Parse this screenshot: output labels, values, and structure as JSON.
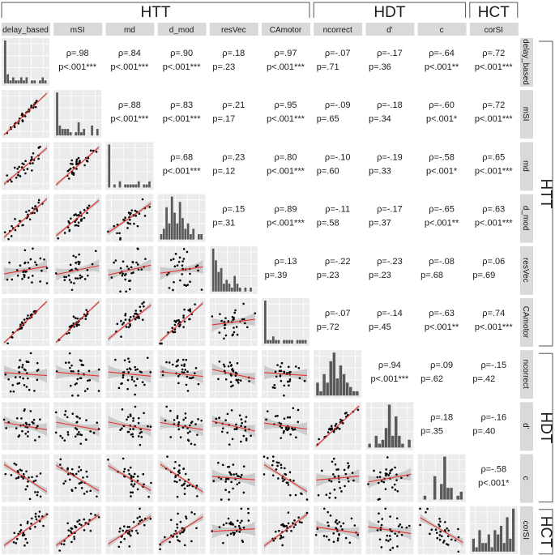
{
  "chart_data": {
    "type": "scatter-matrix",
    "variables": [
      "delay_based",
      "mSI",
      "md",
      "d_mod",
      "resVec",
      "CAmotor",
      "ncorrect",
      "d'",
      "c",
      "corSI"
    ],
    "groups": [
      {
        "label": "HTT",
        "from": 0,
        "to": 5
      },
      {
        "label": "HDT",
        "from": 6,
        "to": 8
      },
      {
        "label": "HCT",
        "from": 9,
        "to": 9
      }
    ],
    "upper_panels": "spearman correlation",
    "lower_panels": "scatter with linear fit and confidence band",
    "diagonal_panels": "histogram",
    "colors": {
      "fit_line": "#e8312f",
      "band": "#bdbdbd",
      "panel_bg": "#ebebeb",
      "strip_bg": "#d9d9d9",
      "bars": "#595959",
      "points": "#000000"
    },
    "correlations": [
      {
        "r": 0,
        "c": 1,
        "rho": "ρ=.98",
        "p": "p<.001***"
      },
      {
        "r": 0,
        "c": 2,
        "rho": "ρ=.84",
        "p": "p<.001***"
      },
      {
        "r": 0,
        "c": 3,
        "rho": "ρ=.90",
        "p": "p<.001***"
      },
      {
        "r": 0,
        "c": 4,
        "rho": "ρ=.18",
        "p": "p=.23"
      },
      {
        "r": 0,
        "c": 5,
        "rho": "ρ=.97",
        "p": "p<.001***"
      },
      {
        "r": 0,
        "c": 6,
        "rho": "ρ=-.07",
        "p": "p=.71"
      },
      {
        "r": 0,
        "c": 7,
        "rho": "ρ=-.17",
        "p": "p=.36"
      },
      {
        "r": 0,
        "c": 8,
        "rho": "ρ=-.64",
        "p": "p<.001**"
      },
      {
        "r": 0,
        "c": 9,
        "rho": "ρ=.72",
        "p": "p<.001***"
      },
      {
        "r": 1,
        "c": 2,
        "rho": "ρ=.88",
        "p": "p<.001***"
      },
      {
        "r": 1,
        "c": 3,
        "rho": "ρ=.83",
        "p": "p<.001***"
      },
      {
        "r": 1,
        "c": 4,
        "rho": "ρ=.21",
        "p": "p=.17"
      },
      {
        "r": 1,
        "c": 5,
        "rho": "ρ=.95",
        "p": "p<.001***"
      },
      {
        "r": 1,
        "c": 6,
        "rho": "ρ=-.09",
        "p": "p=.65"
      },
      {
        "r": 1,
        "c": 7,
        "rho": "ρ=-.18",
        "p": "p=.34"
      },
      {
        "r": 1,
        "c": 8,
        "rho": "ρ=-.60",
        "p": "p<.001*"
      },
      {
        "r": 1,
        "c": 9,
        "rho": "ρ=.72",
        "p": "p<.001***"
      },
      {
        "r": 2,
        "c": 3,
        "rho": "ρ=.68",
        "p": "p<.001***"
      },
      {
        "r": 2,
        "c": 4,
        "rho": "ρ=.23",
        "p": "p=.12"
      },
      {
        "r": 2,
        "c": 5,
        "rho": "ρ=.80",
        "p": "p<.001***"
      },
      {
        "r": 2,
        "c": 6,
        "rho": "ρ=-.10",
        "p": "p=.60"
      },
      {
        "r": 2,
        "c": 7,
        "rho": "ρ=-.19",
        "p": "p=.33"
      },
      {
        "r": 2,
        "c": 8,
        "rho": "ρ=-.58",
        "p": "p<.001*"
      },
      {
        "r": 2,
        "c": 9,
        "rho": "ρ=.65",
        "p": "p<.001***"
      },
      {
        "r": 3,
        "c": 4,
        "rho": "ρ=.15",
        "p": "p=.31"
      },
      {
        "r": 3,
        "c": 5,
        "rho": "ρ=.89",
        "p": "p<.001***"
      },
      {
        "r": 3,
        "c": 6,
        "rho": "ρ=-.11",
        "p": "p=.58"
      },
      {
        "r": 3,
        "c": 7,
        "rho": "ρ=-.17",
        "p": "p=.37"
      },
      {
        "r": 3,
        "c": 8,
        "rho": "ρ=-.65",
        "p": "p<.001**"
      },
      {
        "r": 3,
        "c": 9,
        "rho": "ρ=.63",
        "p": "p<.001***"
      },
      {
        "r": 4,
        "c": 5,
        "rho": "ρ=.13",
        "p": "p=.39"
      },
      {
        "r": 4,
        "c": 6,
        "rho": "ρ=-.22",
        "p": "p=.23"
      },
      {
        "r": 4,
        "c": 7,
        "rho": "ρ=-.23",
        "p": "p=.23"
      },
      {
        "r": 4,
        "c": 8,
        "rho": "ρ=-.08",
        "p": "p=.68"
      },
      {
        "r": 4,
        "c": 9,
        "rho": "ρ=.06",
        "p": "p=.69"
      },
      {
        "r": 5,
        "c": 6,
        "rho": "ρ=-.07",
        "p": "p=.72"
      },
      {
        "r": 5,
        "c": 7,
        "rho": "ρ=-.14",
        "p": "p=.45"
      },
      {
        "r": 5,
        "c": 8,
        "rho": "ρ=-.63",
        "p": "p<.001**"
      },
      {
        "r": 5,
        "c": 9,
        "rho": "ρ=.74",
        "p": "p<.001***"
      },
      {
        "r": 6,
        "c": 7,
        "rho": "ρ=.94",
        "p": "p<.001***"
      },
      {
        "r": 6,
        "c": 8,
        "rho": "ρ=.09",
        "p": "p=.62"
      },
      {
        "r": 6,
        "c": 9,
        "rho": "ρ=-.15",
        "p": "p=.42"
      },
      {
        "r": 7,
        "c": 8,
        "rho": "ρ=.18",
        "p": "p=.35"
      },
      {
        "r": 7,
        "c": 9,
        "rho": "ρ=-.16",
        "p": "p=.40"
      },
      {
        "r": 8,
        "c": 9,
        "rho": "ρ=-.58",
        "p": "p<.001*"
      }
    ],
    "histograms": [
      [
        14,
        3,
        1,
        2,
        1,
        1,
        2,
        1,
        2,
        0,
        1,
        1,
        0,
        1,
        2,
        1
      ],
      [
        13,
        3,
        2,
        2,
        2,
        1,
        0,
        1,
        4,
        1,
        2,
        0,
        0,
        3,
        0,
        2
      ],
      [
        14,
        0,
        1,
        0,
        2,
        0,
        1,
        1,
        1,
        1,
        1,
        2,
        0,
        1,
        1,
        2
      ],
      [
        1,
        2,
        6,
        3,
        8,
        5,
        3,
        7,
        4,
        2,
        3,
        1,
        2,
        0,
        1,
        1
      ],
      [
        11,
        8,
        5,
        6,
        2,
        3,
        2,
        1,
        4,
        2,
        1,
        0,
        1,
        0,
        1,
        0
      ],
      [
        12,
        1,
        1,
        2,
        1,
        1,
        0,
        1,
        1,
        1,
        1,
        0,
        1,
        1,
        1,
        1
      ],
      [
        3,
        1,
        5,
        3,
        8,
        10,
        4,
        7,
        5,
        3,
        2,
        1,
        1
      ],
      [
        1,
        0,
        3,
        1,
        2,
        5,
        11,
        3,
        8,
        3,
        1,
        0,
        2
      ],
      [
        0,
        1,
        0,
        0,
        6,
        0,
        4,
        11,
        3,
        3,
        0,
        1,
        2
      ],
      [
        3,
        1,
        5,
        2,
        2,
        4,
        1,
        5,
        4,
        6,
        2,
        8,
        3,
        10
      ]
    ]
  }
}
